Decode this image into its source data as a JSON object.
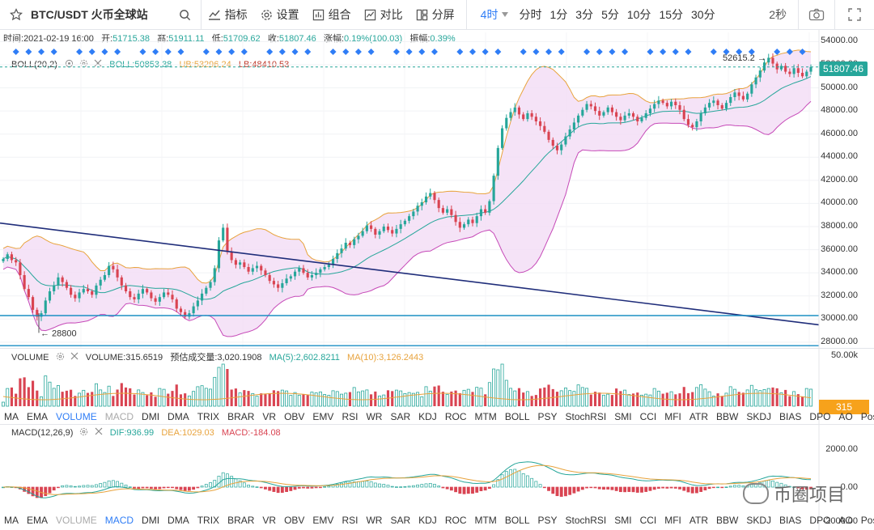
{
  "toolbar": {
    "symbol": "BTC/USDT 火币全球站",
    "indicators": "指标",
    "settings": "设置",
    "combo": "组合",
    "compare": "对比",
    "split": "分屏",
    "active_interval": "4时",
    "intervals": [
      "分时",
      "1分",
      "3分",
      "5分",
      "10分",
      "15分",
      "30分"
    ],
    "refresh": "2秒"
  },
  "info": {
    "time_label": "时间:",
    "time": "2021-02-19 16:00",
    "open_label": "开:",
    "open": "51715.38",
    "high_label": "高:",
    "high": "51911.11",
    "low_label": "低:",
    "low": "51709.62",
    "close_label": "收:",
    "close": "51807.46",
    "chg_label": "涨幅:",
    "chg": "0.19%(100.03)",
    "amp_label": "振幅:",
    "amp": "0.39%"
  },
  "boll": {
    "name": "BOLL(20,2)",
    "mid": "BOLL:50853.38",
    "ub": "UB:53296.24",
    "lb": "LB:48410.53"
  },
  "price_axis": [
    "54000.00",
    "52000.00",
    "50000.00",
    "48000.00",
    "46000.00",
    "44000.00",
    "42000.00",
    "40000.00",
    "38000.00",
    "36000.00",
    "34000.00",
    "32000.00",
    "30000.00",
    "28000.00"
  ],
  "last_price": "51807.46",
  "annotations": {
    "low": "← 28800",
    "high": "52615.2 →"
  },
  "volume": {
    "name": "VOLUME",
    "value": "VOLUME:315.6519",
    "estimate": "预估成交量:3,020.1908",
    "ma5": "MA(5):2,602.8211",
    "ma10": "MA(10):3,126.2443",
    "axis_top": "50.00k",
    "tag": "315"
  },
  "indicator_tabs": [
    "MA",
    "EMA",
    "VOLUME",
    "MACD",
    "DMI",
    "DMA",
    "TRIX",
    "BRAR",
    "VR",
    "OBV",
    "EMV",
    "RSI",
    "WR",
    "SAR",
    "KDJ",
    "ROC",
    "MTM",
    "BOLL",
    "PSY",
    "StochRSI",
    "SMI",
    "CCI",
    "MFI",
    "ATR",
    "BBW",
    "SKDJ",
    "BIAS",
    "DPO",
    "AO",
    "Position"
  ],
  "macd": {
    "name": "MACD(12,26,9)",
    "dif": "DIF:936.99",
    "dea": "DEA:1029.03",
    "macd": "MACD:-184.08",
    "axis_top": "2000.00",
    "axis_mid": "0.00",
    "axis_bot": "-2000.00"
  },
  "watermark": "币圈项目",
  "colors": {
    "up": "#26a69a",
    "down": "#d94452",
    "accent": "#2f7df6",
    "band": "#f3dcf5"
  },
  "chart_data": {
    "type": "candlestick",
    "title": "BTC/USDT 4H",
    "price_range": [
      27500,
      54800
    ],
    "closes": [
      35200,
      35600,
      35100,
      34900,
      33800,
      32600,
      31900,
      30800,
      30200,
      30500,
      31600,
      32400,
      32900,
      33600,
      33200,
      32700,
      32100,
      31800,
      32300,
      32600,
      32400,
      32100,
      32900,
      33400,
      33800,
      34600,
      34300,
      33600,
      32900,
      32400,
      31900,
      31700,
      32200,
      32600,
      32300,
      31800,
      31500,
      31900,
      32300,
      32100,
      31700,
      30900,
      30600,
      30200,
      30500,
      31100,
      31600,
      32200,
      32700,
      33200,
      34400,
      36800,
      37900,
      35800,
      35100,
      34700,
      34900,
      34500,
      34100,
      34400,
      34600,
      34200,
      33800,
      33300,
      33000,
      32700,
      33100,
      33500,
      33700,
      34100,
      34400,
      34000,
      33600,
      33800,
      34000,
      34300,
      34500,
      34700,
      35200,
      35700,
      36100,
      36600,
      36400,
      36900,
      37200,
      37600,
      38100,
      37800,
      37300,
      37600,
      38000,
      37700,
      37400,
      37800,
      38200,
      38500,
      38900,
      39300,
      39800,
      40100,
      40600,
      40900,
      40300,
      39600,
      39200,
      39500,
      39000,
      38400,
      37900,
      38200,
      38600,
      38300,
      38900,
      39500,
      39200,
      40200,
      42400,
      44800,
      46500,
      47400,
      47900,
      48300,
      47700,
      47300,
      47800,
      47500,
      47100,
      46700,
      46200,
      45500,
      45000,
      44600,
      45100,
      45800,
      46400,
      47000,
      47600,
      48100,
      48600,
      48400,
      48000,
      47600,
      47900,
      48300,
      47900,
      47500,
      47200,
      47600,
      47800,
      47500,
      47100,
      47400,
      47800,
      48200,
      48600,
      48900,
      48700,
      48400,
      48800,
      48500,
      48100,
      47300,
      46800,
      46600,
      47100,
      47800,
      48300,
      48700,
      48900,
      48500,
      48200,
      48700,
      49200,
      49600,
      49300,
      49000,
      49500,
      50300,
      50900,
      51500,
      52200,
      52600,
      52100,
      51600,
      51900,
      51400,
      51200,
      51700,
      51300,
      51000,
      51400,
      51807
    ]
  }
}
